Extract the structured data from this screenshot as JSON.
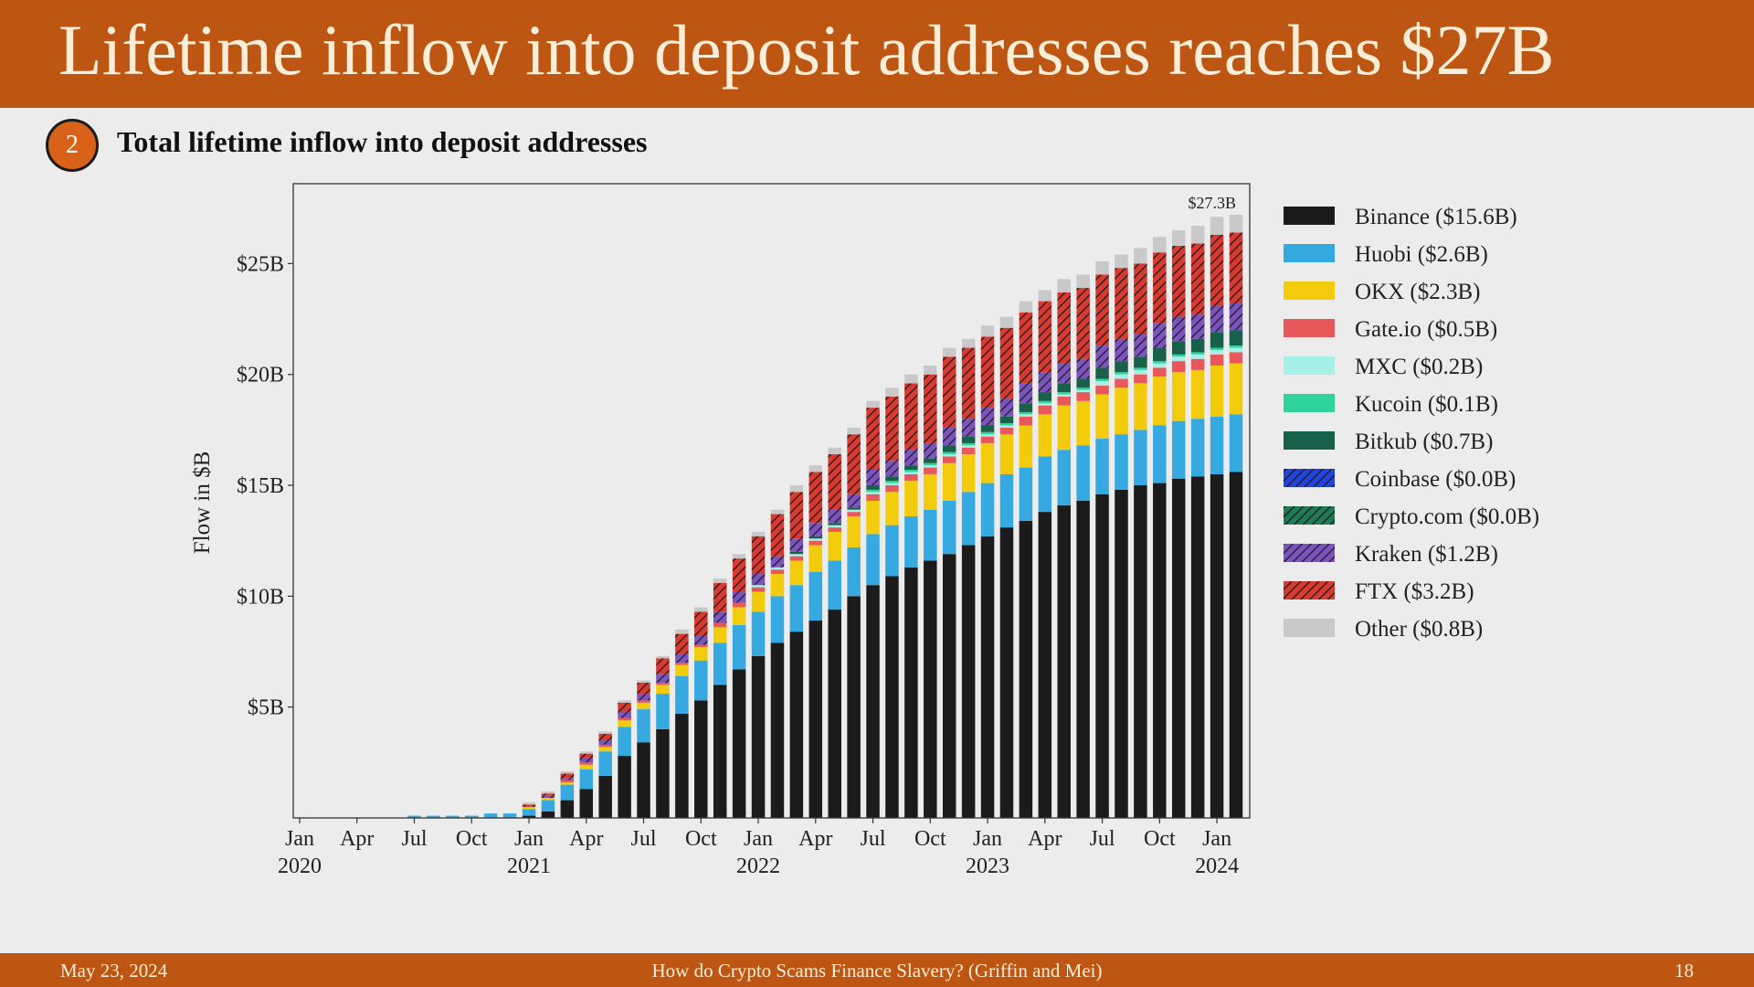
{
  "header": {
    "title": "Lifetime inflow into deposit addresses reaches $27B"
  },
  "badge": "2",
  "subtitle": "Total lifetime inflow into deposit addresses",
  "footer": {
    "date": "May 23, 2024",
    "citation": "How do Crypto Scams Finance Slavery? (Griffin and Mei)",
    "page": "18"
  },
  "chart_data": {
    "type": "stacked_bar",
    "ylabel": "Flow in $B",
    "annotation": "$27.3B",
    "ylim": [
      0,
      28.6
    ],
    "yticks": [
      {
        "value": 5,
        "label": "$5B"
      },
      {
        "value": 10,
        "label": "$10B"
      },
      {
        "value": 15,
        "label": "$15B"
      },
      {
        "value": 20,
        "label": "$20B"
      },
      {
        "value": 25,
        "label": "$25B"
      }
    ],
    "categories": [
      "Jan 2020",
      null,
      null,
      "Apr",
      null,
      null,
      "Jul",
      null,
      null,
      "Oct",
      null,
      null,
      "Jan 2021",
      null,
      null,
      "Apr",
      null,
      null,
      "Jul",
      null,
      null,
      "Oct",
      null,
      null,
      "Jan 2022",
      null,
      null,
      "Apr",
      null,
      null,
      "Jul",
      null,
      null,
      "Oct",
      null,
      null,
      "Jan 2023",
      null,
      null,
      "Apr",
      null,
      null,
      "Jul",
      null,
      null,
      "Oct",
      null,
      null,
      "Jan 2024",
      null
    ],
    "series": [
      {
        "name": "Binance ($15.6B)",
        "color": "#1b1b1b",
        "values": [
          0,
          0,
          0,
          0,
          0,
          0,
          0,
          0,
          0,
          0,
          0,
          0,
          0.1,
          0.3,
          0.8,
          1.3,
          1.9,
          2.8,
          3.4,
          4.0,
          4.7,
          5.3,
          6.0,
          6.7,
          7.3,
          7.9,
          8.4,
          8.9,
          9.4,
          10.0,
          10.5,
          10.9,
          11.3,
          11.6,
          11.9,
          12.3,
          12.7,
          13.1,
          13.4,
          13.8,
          14.1,
          14.3,
          14.6,
          14.8,
          15.0,
          15.1,
          15.3,
          15.4,
          15.5,
          15.6
        ]
      },
      {
        "name": "Huobi ($2.6B)",
        "color": "#36a9e1",
        "values": [
          0,
          0,
          0,
          0,
          0,
          0,
          0.1,
          0.1,
          0.1,
          0.1,
          0.2,
          0.2,
          0.3,
          0.5,
          0.7,
          0.9,
          1.1,
          1.3,
          1.5,
          1.6,
          1.7,
          1.8,
          1.9,
          2.0,
          2.0,
          2.1,
          2.1,
          2.2,
          2.2,
          2.2,
          2.3,
          2.3,
          2.3,
          2.3,
          2.4,
          2.4,
          2.4,
          2.4,
          2.4,
          2.5,
          2.5,
          2.5,
          2.5,
          2.5,
          2.5,
          2.6,
          2.6,
          2.6,
          2.6,
          2.6
        ]
      },
      {
        "name": "OKX ($2.3B)",
        "color": "#f2cc0c",
        "values": [
          0,
          0,
          0,
          0,
          0,
          0,
          0,
          0,
          0,
          0,
          0,
          0,
          0.1,
          0.1,
          0.1,
          0.2,
          0.2,
          0.3,
          0.3,
          0.4,
          0.5,
          0.6,
          0.7,
          0.8,
          0.9,
          1.0,
          1.1,
          1.2,
          1.3,
          1.4,
          1.5,
          1.5,
          1.6,
          1.6,
          1.7,
          1.7,
          1.8,
          1.8,
          1.9,
          1.9,
          2.0,
          2.0,
          2.0,
          2.1,
          2.1,
          2.2,
          2.2,
          2.2,
          2.3,
          2.3
        ]
      },
      {
        "name": "Gate.io ($0.5B)",
        "color": "#e8585a",
        "values": [
          0,
          0,
          0,
          0,
          0,
          0,
          0,
          0,
          0,
          0,
          0,
          0,
          0,
          0,
          0.1,
          0.1,
          0.1,
          0.1,
          0.1,
          0.1,
          0.1,
          0.1,
          0.2,
          0.2,
          0.2,
          0.2,
          0.2,
          0.2,
          0.2,
          0.2,
          0.3,
          0.3,
          0.3,
          0.3,
          0.3,
          0.3,
          0.3,
          0.3,
          0.4,
          0.4,
          0.4,
          0.4,
          0.4,
          0.4,
          0.4,
          0.4,
          0.5,
          0.5,
          0.5,
          0.5
        ]
      },
      {
        "name": "MXC ($0.2B)",
        "color": "#a6f0e8",
        "values": [
          0,
          0,
          0,
          0,
          0,
          0,
          0,
          0,
          0,
          0,
          0,
          0,
          0,
          0,
          0,
          0,
          0,
          0,
          0,
          0,
          0,
          0,
          0,
          0,
          0.1,
          0.1,
          0.1,
          0.1,
          0.1,
          0.1,
          0.1,
          0.1,
          0.1,
          0.1,
          0.1,
          0.1,
          0.1,
          0.1,
          0.1,
          0.1,
          0.1,
          0.1,
          0.2,
          0.2,
          0.2,
          0.2,
          0.2,
          0.2,
          0.2,
          0.2
        ]
      },
      {
        "name": "Kucoin ($0.1B)",
        "color": "#2fd39b",
        "values": [
          0,
          0,
          0,
          0,
          0,
          0,
          0,
          0,
          0,
          0,
          0,
          0,
          0,
          0,
          0,
          0,
          0,
          0,
          0,
          0,
          0,
          0,
          0,
          0,
          0,
          0,
          0,
          0,
          0,
          0,
          0.1,
          0.1,
          0.1,
          0.1,
          0.1,
          0.1,
          0.1,
          0.1,
          0.1,
          0.1,
          0.1,
          0.1,
          0.1,
          0.1,
          0.1,
          0.1,
          0.1,
          0.1,
          0.1,
          0.1
        ]
      },
      {
        "name": "Bitkub ($0.7B)",
        "color": "#17604a",
        "values": [
          0,
          0,
          0,
          0,
          0,
          0,
          0,
          0,
          0,
          0,
          0,
          0,
          0,
          0,
          0,
          0,
          0,
          0,
          0,
          0,
          0,
          0,
          0,
          0,
          0,
          0,
          0.1,
          0.1,
          0.1,
          0.1,
          0.2,
          0.2,
          0.2,
          0.2,
          0.3,
          0.3,
          0.3,
          0.3,
          0.4,
          0.4,
          0.4,
          0.4,
          0.5,
          0.5,
          0.5,
          0.6,
          0.6,
          0.6,
          0.7,
          0.7
        ]
      },
      {
        "name": "Coinbase ($0.0B)",
        "color": "#2244dd",
        "hatch": true,
        "values": [
          0,
          0,
          0,
          0,
          0,
          0,
          0,
          0,
          0,
          0,
          0,
          0,
          0,
          0,
          0,
          0,
          0,
          0,
          0,
          0,
          0,
          0,
          0,
          0,
          0,
          0,
          0,
          0,
          0,
          0,
          0,
          0,
          0,
          0,
          0,
          0,
          0,
          0,
          0,
          0,
          0,
          0,
          0,
          0,
          0,
          0,
          0,
          0,
          0,
          0
        ]
      },
      {
        "name": "Crypto.com ($0.0B)",
        "color": "#1f7a55",
        "hatch": true,
        "values": [
          0,
          0,
          0,
          0,
          0,
          0,
          0,
          0,
          0,
          0,
          0,
          0,
          0,
          0,
          0,
          0,
          0,
          0,
          0,
          0,
          0,
          0,
          0,
          0,
          0,
          0,
          0,
          0,
          0,
          0,
          0,
          0,
          0,
          0,
          0,
          0,
          0,
          0,
          0,
          0,
          0,
          0,
          0,
          0,
          0,
          0,
          0,
          0,
          0,
          0
        ]
      },
      {
        "name": "Kraken ($1.2B)",
        "color": "#7b55bd",
        "hatch": true,
        "values": [
          0,
          0,
          0,
          0,
          0,
          0,
          0,
          0,
          0,
          0,
          0,
          0,
          0,
          0.1,
          0.1,
          0.2,
          0.2,
          0.3,
          0.3,
          0.4,
          0.4,
          0.4,
          0.5,
          0.5,
          0.5,
          0.5,
          0.6,
          0.6,
          0.6,
          0.6,
          0.7,
          0.7,
          0.7,
          0.7,
          0.8,
          0.8,
          0.8,
          0.8,
          0.9,
          0.9,
          0.9,
          0.9,
          1.0,
          1.0,
          1.0,
          1.1,
          1.1,
          1.1,
          1.2,
          1.2
        ]
      },
      {
        "name": "FTX ($3.2B)",
        "color": "#d63a30",
        "hatch": true,
        "values": [
          0,
          0,
          0,
          0,
          0,
          0,
          0,
          0,
          0,
          0,
          0,
          0,
          0.1,
          0.1,
          0.2,
          0.2,
          0.3,
          0.4,
          0.5,
          0.7,
          0.9,
          1.1,
          1.3,
          1.5,
          1.7,
          1.9,
          2.1,
          2.3,
          2.5,
          2.7,
          2.8,
          2.9,
          3.0,
          3.1,
          3.2,
          3.2,
          3.2,
          3.2,
          3.2,
          3.2,
          3.2,
          3.2,
          3.2,
          3.2,
          3.2,
          3.2,
          3.2,
          3.2,
          3.2,
          3.2
        ]
      },
      {
        "name": "Other ($0.8B)",
        "color": "#c9c9c9",
        "values": [
          0,
          0,
          0,
          0,
          0,
          0,
          0,
          0,
          0,
          0,
          0,
          0,
          0.1,
          0.1,
          0.1,
          0.1,
          0.1,
          0.1,
          0.1,
          0.1,
          0.2,
          0.2,
          0.2,
          0.2,
          0.2,
          0.2,
          0.3,
          0.3,
          0.3,
          0.3,
          0.3,
          0.4,
          0.4,
          0.4,
          0.4,
          0.4,
          0.5,
          0.5,
          0.5,
          0.5,
          0.6,
          0.6,
          0.6,
          0.6,
          0.7,
          0.7,
          0.7,
          0.8,
          0.8,
          0.8
        ]
      }
    ]
  }
}
